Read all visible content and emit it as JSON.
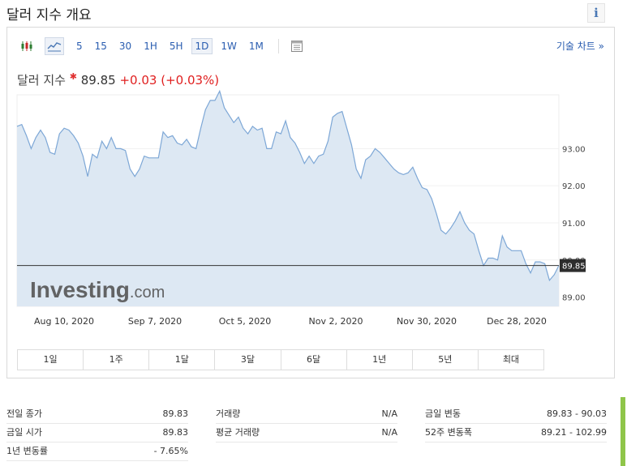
{
  "page_title": "달러 지수 개요",
  "info_icon": "i",
  "toolbar": {
    "icons": [
      "candlestick-icon",
      "line-chart-icon"
    ],
    "timeframes": [
      "5",
      "15",
      "30",
      "1H",
      "5H",
      "1D",
      "1W",
      "1M"
    ],
    "active_timeframe": "1D",
    "calendar_icon": "calendar-icon",
    "tech_chart_link": "기술 차트 »"
  },
  "quote": {
    "name": "달러 지수",
    "price": "89.85",
    "change": "+0.03",
    "change_pct": "(+0.03%)",
    "down_color": "#e02020"
  },
  "watermark": {
    "brand": "Investing",
    "suffix": ".com"
  },
  "ranges": [
    "1일",
    "1주",
    "1달",
    "3달",
    "6달",
    "1년",
    "5년",
    "최대"
  ],
  "stats": [
    {
      "label": "전일 종가",
      "value": "89.83"
    },
    {
      "label": "금일 시가",
      "value": "89.83"
    },
    {
      "label": "1년 변동률",
      "value": "- 7.65%"
    },
    {
      "label": "거래량",
      "value": "N/A"
    },
    {
      "label": "평균 거래량",
      "value": "N/A"
    },
    {
      "label": "금일 변동",
      "value": "89.83 - 90.03"
    },
    {
      "label": "52주 변동폭",
      "value": "89.21 - 102.99"
    }
  ],
  "chart_data": {
    "type": "area",
    "x_tick_labels": [
      "Aug 10, 2020",
      "Sep 7, 2020",
      "Oct 5, 2020",
      "Nov 2, 2020",
      "Nov 30, 2020",
      "Dec 28, 2020"
    ],
    "y_tick_labels": [
      "89.00",
      "90.00",
      "91.00",
      "92.00",
      "93.00"
    ],
    "y_ticks": [
      89,
      90,
      91,
      92,
      93
    ],
    "ylim": [
      88.75,
      94.45
    ],
    "current_value": 89.85,
    "current_label": "89.85",
    "line_color": "#7da7d6",
    "fill_color": "#dde8f3",
    "values": [
      93.6,
      93.65,
      93.35,
      93.0,
      93.3,
      93.5,
      93.3,
      92.9,
      92.85,
      93.4,
      93.55,
      93.5,
      93.35,
      93.15,
      92.8,
      92.25,
      92.85,
      92.75,
      93.2,
      93.0,
      93.3,
      93.0,
      93.0,
      92.95,
      92.45,
      92.25,
      92.45,
      92.8,
      92.75,
      92.75,
      92.75,
      93.45,
      93.3,
      93.35,
      93.15,
      93.1,
      93.25,
      93.05,
      93.0,
      93.55,
      94.05,
      94.3,
      94.3,
      94.55,
      94.1,
      93.9,
      93.7,
      93.85,
      93.55,
      93.4,
      93.6,
      93.5,
      93.55,
      93.0,
      93.0,
      93.45,
      93.4,
      93.75,
      93.3,
      93.15,
      92.9,
      92.6,
      92.8,
      92.6,
      92.8,
      92.85,
      93.2,
      93.85,
      93.95,
      94.0,
      93.55,
      93.1,
      92.45,
      92.2,
      92.7,
      92.8,
      93.0,
      92.9,
      92.75,
      92.6,
      92.45,
      92.35,
      92.3,
      92.35,
      92.5,
      92.2,
      91.95,
      91.9,
      91.65,
      91.25,
      90.8,
      90.7,
      90.85,
      91.05,
      91.3,
      91.0,
      90.8,
      90.7,
      90.25,
      89.85,
      90.05,
      90.05,
      90.0,
      90.65,
      90.35,
      90.25,
      90.25,
      90.25,
      89.9,
      89.65,
      89.95,
      89.95,
      89.9,
      89.45,
      89.6,
      89.85
    ]
  }
}
